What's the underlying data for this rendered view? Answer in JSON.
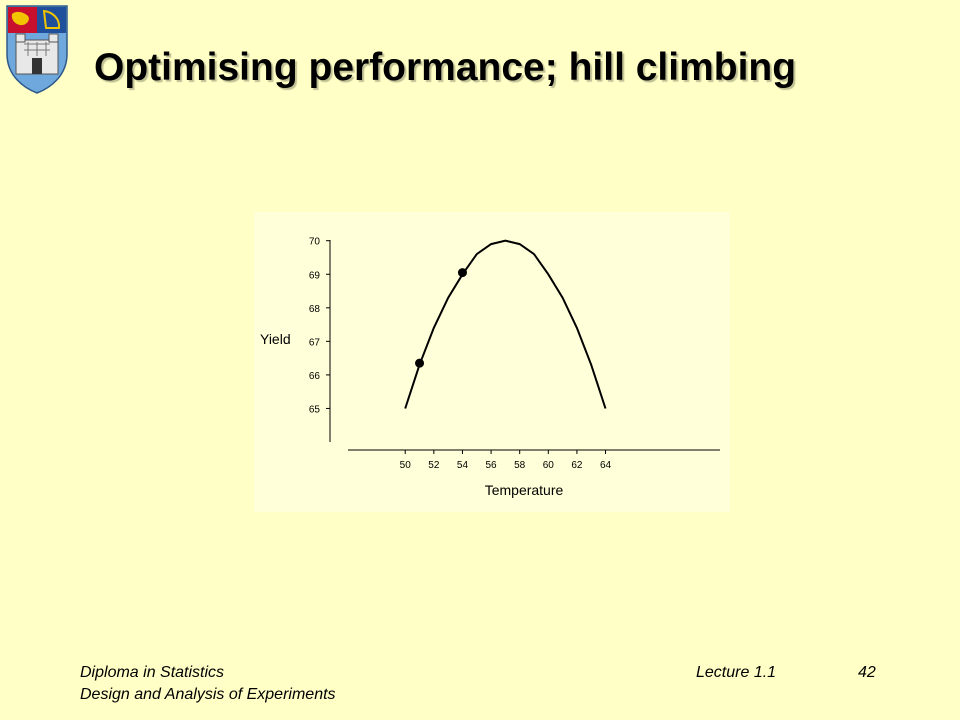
{
  "slide": {
    "title": "Optimising performance; hill climbing"
  },
  "footer": {
    "course": "Diploma in Statistics",
    "module": "Design and Analysis of Experiments",
    "lecture": "Lecture 1.1",
    "page": "42"
  },
  "logo": {
    "icon": "crest-icon"
  },
  "colors": {
    "background": "#FFFFC6",
    "chart_background": "#FFFFD9",
    "ink": "#000000"
  },
  "chart_data": {
    "type": "line",
    "xlabel": "Temperature",
    "ylabel": "Yield",
    "xlim": [
      46,
      72
    ],
    "ylim": [
      64,
      70.2
    ],
    "xticks": [
      50,
      52,
      54,
      56,
      58,
      60,
      62,
      64
    ],
    "yticks": [
      65,
      66,
      67,
      68,
      69,
      70
    ],
    "curve": {
      "x": [
        50,
        51,
        52,
        53,
        54,
        55,
        56,
        57,
        58,
        59,
        60,
        61,
        62,
        63,
        64
      ],
      "y": [
        65.0,
        66.3,
        67.4,
        68.3,
        69.0,
        69.6,
        69.9,
        70.0,
        69.9,
        69.6,
        69.0,
        68.3,
        67.4,
        66.3,
        65.0
      ]
    },
    "points": {
      "x": [
        51,
        54
      ],
      "y": [
        66.35,
        69.05
      ]
    },
    "grid": false
  }
}
